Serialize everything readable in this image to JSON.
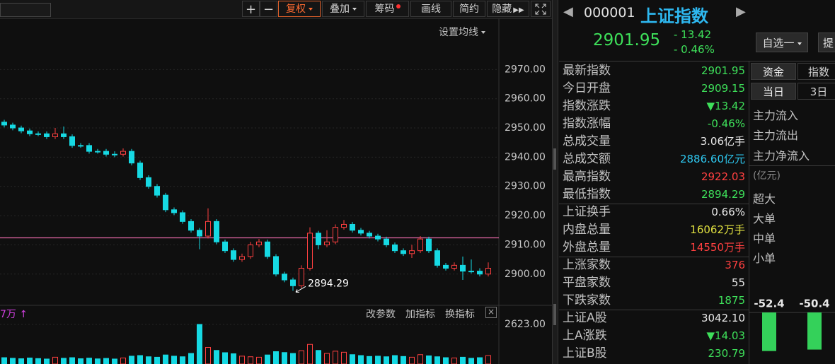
{
  "toolbar": {
    "buttons": [
      "+",
      "−",
      "复权",
      "叠加",
      "筹码",
      "画线",
      "简约",
      "隐藏"
    ]
  },
  "ma_setting": "设置均线",
  "price_chart": {
    "type": "candlestick",
    "ylim": [
      2889.3,
      2987.5
    ],
    "yticks": [
      {
        "value": 2970,
        "label": "2970.00"
      },
      {
        "value": 2960,
        "label": "2960.00"
      },
      {
        "value": 2950,
        "label": "2950.00"
      },
      {
        "value": 2940,
        "label": "2940.00"
      },
      {
        "value": 2930,
        "label": "2930.00"
      },
      {
        "value": 2920,
        "label": "2920.00"
      },
      {
        "value": 2910,
        "label": "2910.00"
      },
      {
        "value": 2900,
        "label": "2900.00"
      }
    ],
    "grid": true,
    "up_color": "#ff4040",
    "down_color": "#16d9e3",
    "reference_line": 2912.4,
    "reference_color": "#e868a8",
    "annotation": "2894.29",
    "annotation_index": 34,
    "candles": [
      [
        2952,
        2952.8,
        2950.2,
        2951
      ],
      [
        2951,
        2951.8,
        2949.2,
        2950
      ],
      [
        2950,
        2950.8,
        2948.2,
        2949
      ],
      [
        2949,
        2949.8,
        2947.2,
        2948
      ],
      [
        2948,
        2948.8,
        2947.2,
        2948
      ],
      [
        2948,
        2948.8,
        2946.2,
        2947
      ],
      [
        2947,
        2950,
        2946.2,
        2948
      ],
      [
        2948,
        2950.5,
        2946.2,
        2947
      ],
      [
        2947,
        2947.8,
        2943.2,
        2944
      ],
      [
        2944,
        2944.8,
        2943.2,
        2944
      ],
      [
        2944,
        2944.8,
        2941.2,
        2942
      ],
      [
        2942,
        2942.8,
        2941.2,
        2942
      ],
      [
        2942,
        2942.8,
        2940.2,
        2941
      ],
      [
        2941,
        2942,
        2940,
        2941
      ],
      [
        2941,
        2943,
        2940.2,
        2942
      ],
      [
        2942,
        2942.8,
        2937.2,
        2938
      ],
      [
        2938,
        2938.8,
        2932.2,
        2933
      ],
      [
        2933,
        2933.8,
        2929.2,
        2930
      ],
      [
        2930,
        2930.8,
        2926.2,
        2927
      ],
      [
        2927,
        2927.8,
        2921.2,
        2922
      ],
      [
        2922,
        2922.8,
        2920.2,
        2921
      ],
      [
        2921,
        2921.8,
        2917.2,
        2918
      ],
      [
        2918,
        2918.8,
        2914.2,
        2915
      ],
      [
        2915,
        2915.8,
        2908.5,
        2913
      ],
      [
        2913,
        2922.5,
        2912.2,
        2918
      ],
      [
        2918,
        2918.8,
        2910.2,
        2911
      ],
      [
        2911,
        2911.8,
        2907.2,
        2908
      ],
      [
        2908,
        2908.8,
        2904.2,
        2905
      ],
      [
        2905,
        2907,
        2904.2,
        2906
      ],
      [
        2906,
        2911,
        2905.2,
        2910
      ],
      [
        2910,
        2912,
        2909.2,
        2911
      ],
      [
        2911,
        2911.8,
        2905.2,
        2906
      ],
      [
        2906,
        2906.8,
        2899.2,
        2900
      ],
      [
        2900,
        2900.8,
        2897.2,
        2898
      ],
      [
        2898,
        2898.8,
        2894.29,
        2896
      ],
      [
        2896,
        2903,
        2895.2,
        2902
      ],
      [
        2902,
        2916,
        2901.2,
        2914
      ],
      [
        2914,
        2914.8,
        2908.5,
        2910
      ],
      [
        2910,
        2915,
        2909.2,
        2911
      ],
      [
        2911,
        2917,
        2910.2,
        2916
      ],
      [
        2916,
        2918.5,
        2915.2,
        2917
      ],
      [
        2917,
        2917.8,
        2914.2,
        2915
      ],
      [
        2915,
        2915.8,
        2913.2,
        2914
      ],
      [
        2914,
        2914.8,
        2912.2,
        2913
      ],
      [
        2913,
        2913.8,
        2911.2,
        2912
      ],
      [
        2912,
        2912.8,
        2909.2,
        2910
      ],
      [
        2910,
        2910.8,
        2907.2,
        2908
      ],
      [
        2908,
        2908.8,
        2906.2,
        2907
      ],
      [
        2907,
        2910,
        2905.5,
        2908
      ],
      [
        2908,
        2913,
        2907.2,
        2912
      ],
      [
        2912,
        2912.8,
        2907.2,
        2908
      ],
      [
        2908,
        2908.8,
        2902.2,
        2903
      ],
      [
        2903,
        2903.8,
        2901.2,
        2902
      ],
      [
        2902,
        2904,
        2901.2,
        2903
      ],
      [
        2903,
        2906,
        2898,
        2901
      ],
      [
        2901,
        2905,
        2900.2,
        2901
      ],
      [
        2901,
        2902,
        2899.2,
        2900
      ],
      [
        2900,
        2904,
        2899.2,
        2902
      ]
    ]
  },
  "volume_chart": {
    "type": "bar",
    "label": "7万 ↑",
    "buttons": [
      "改参数",
      "加指标",
      "换指标"
    ],
    "ylim": [
      0,
      3044.6
    ],
    "yticks": [
      {
        "value": 2623,
        "label": "2623.00"
      }
    ],
    "values": [
      420,
      380,
      350,
      400,
      360,
      330,
      450,
      380,
      420,
      350,
      390,
      340,
      370,
      330,
      400,
      520,
      560,
      480,
      450,
      600,
      520,
      480,
      700,
      2623,
      1100,
      900,
      750,
      680,
      520,
      480,
      450,
      600,
      820,
      760,
      700,
      880,
      1300,
      900,
      700,
      850,
      780,
      620,
      560,
      500,
      520,
      480,
      560,
      500,
      450,
      620,
      540,
      480,
      420,
      400,
      450,
      380,
      420,
      560
    ]
  },
  "quote": {
    "code": "000001",
    "name": "上证指数",
    "price": "2901.95",
    "change": "- 13.42",
    "change_pct": "- 0.46%",
    "watch_button": "自选一",
    "cut_button": "提"
  },
  "stats": [
    {
      "label": "最新指数",
      "value": "2901.95",
      "color": "#3ee05a"
    },
    {
      "label": "今日开盘",
      "value": "2909.15",
      "color": "#3ee05a"
    },
    {
      "label": "指数涨跌",
      "value": "▼13.42",
      "color": "#3ee05a"
    },
    {
      "label": "指数涨幅",
      "value": "-0.46%",
      "color": "#3ee05a"
    },
    {
      "label": "总成交量",
      "value": "3.06亿手",
      "color": "#e8e8e8"
    },
    {
      "label": "总成交额",
      "value": "2886.60亿元",
      "color": "#2ec8f0"
    },
    {
      "label": "最高指数",
      "value": "2922.03",
      "color": "#ff4040"
    },
    {
      "label": "最低指数",
      "value": "2894.29",
      "color": "#3ee05a"
    },
    {
      "label": "上证换手",
      "value": "0.66%",
      "color": "#e8e8e8"
    },
    {
      "label": "内盘总量",
      "value": "16062万手",
      "color": "#e0e040"
    },
    {
      "label": "外盘总量",
      "value": "14550万手",
      "color": "#ff4040"
    },
    {
      "label": "上涨家数",
      "value": "376",
      "color": "#ff4040"
    },
    {
      "label": "平盘家数",
      "value": "55",
      "color": "#e8e8e8"
    },
    {
      "label": "下跌家数",
      "value": "1875",
      "color": "#3ee05a"
    },
    {
      "label": "上证A股",
      "value": "3042.10",
      "color": "#e8e8e8"
    },
    {
      "label": "上A涨跌",
      "value": "▼14.03",
      "color": "#3ee05a"
    },
    {
      "label": "上证B股",
      "value": "230.79",
      "color": "#3ee05a"
    }
  ],
  "fund": {
    "tabs": [
      "资金",
      "指数"
    ],
    "periods": [
      "当日",
      "3日"
    ],
    "flows": [
      "主力流入",
      "主力流出",
      "主力净流入"
    ],
    "unit": "(亿元)",
    "sizes": [
      "超大",
      "大单",
      "中单",
      "小单"
    ],
    "bars": {
      "type": "bar",
      "values": [
        -52.4,
        -50.4
      ],
      "value_labels": [
        "-52.4",
        "-50.4"
      ],
      "color": "#34d15a",
      "ylim": [
        -70,
        50
      ]
    }
  }
}
